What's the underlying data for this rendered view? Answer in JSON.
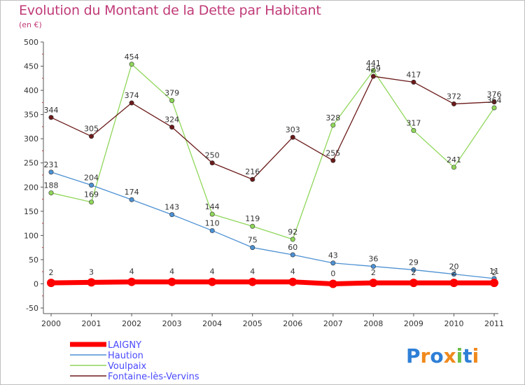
{
  "title": "Evolution du Montant de la Dette par Habitant",
  "subtitle": "(en €)",
  "logo": {
    "text": "Proxiti",
    "letters": [
      "P",
      "r",
      "o",
      "x",
      "i",
      "t",
      "i"
    ],
    "colors": [
      "#2e7fd6",
      "#f08a1d",
      "#2e7fd6",
      "#f08a1d",
      "#6cc04a",
      "#2e7fd6",
      "#f08a1d"
    ]
  },
  "chart_data": {
    "type": "line",
    "x": [
      "2000",
      "2001",
      "2002",
      "2003",
      "2004",
      "2005",
      "2006",
      "2007",
      "2008",
      "2009",
      "2010",
      "2011"
    ],
    "ylim": [
      -50,
      500
    ],
    "yticks": [
      "-50",
      "0",
      "50",
      "100",
      "150",
      "200",
      "250",
      "300",
      "350",
      "400",
      "450",
      "500"
    ],
    "grid": false,
    "legend_position": "bottom-left",
    "series": [
      {
        "name": "LAIGNY",
        "color": "#ff0000",
        "values": [
          2,
          3,
          4,
          4,
          4,
          4,
          4,
          0,
          2,
          2,
          2,
          2
        ],
        "labels": [
          "2",
          "3",
          "4",
          "4",
          "4",
          "4",
          "4",
          "0",
          "2",
          "2",
          "2",
          "2"
        ]
      },
      {
        "name": "Haution",
        "color": "#4d91d3",
        "values": [
          231,
          204,
          174,
          143,
          110,
          75,
          60,
          43,
          36,
          29,
          20,
          11
        ],
        "labels": [
          "231",
          "204",
          "174",
          "143",
          "110",
          "75",
          "60",
          "43",
          "36",
          "29",
          "20",
          "11"
        ]
      },
      {
        "name": "Voulpaix",
        "color": "#8fd65a",
        "values": [
          188,
          169,
          454,
          379,
          144,
          119,
          92,
          328,
          441,
          317,
          241,
          364
        ],
        "labels": [
          "188",
          "169",
          "454",
          "379",
          "144",
          "119",
          "92",
          "328",
          "441",
          "317",
          "241",
          "364"
        ]
      },
      {
        "name": "Fontaine-lès-Vervins",
        "color": "#6b1a1a",
        "values": [
          344,
          305,
          374,
          324,
          250,
          216,
          303,
          255,
          429,
          417,
          372,
          376
        ],
        "labels": [
          "344",
          "305",
          "374",
          "324",
          "250",
          "216",
          "303",
          "255",
          "429",
          "417",
          "372",
          "376"
        ]
      }
    ]
  }
}
